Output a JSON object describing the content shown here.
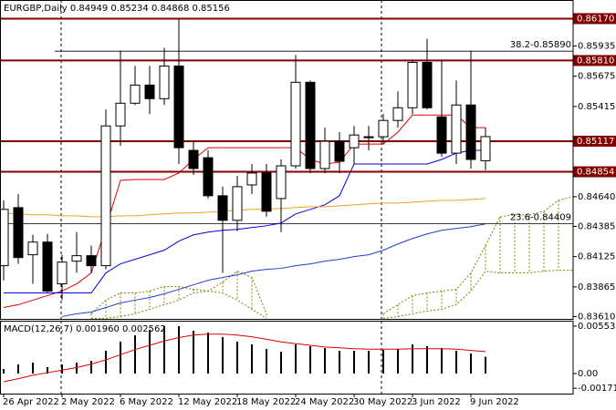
{
  "chart_data": [
    {
      "type": "candlestick",
      "title": "EURGBP,Daily  0.84949 0.85234 0.84868 0.85156",
      "categories": [
        "26 Apr 2022",
        null,
        null,
        null,
        "2 May 2022",
        null,
        null,
        null,
        "6 May 2022",
        null,
        null,
        null,
        "12 May 2022",
        null,
        null,
        null,
        "18 May 2022",
        null,
        null,
        null,
        "24 May 2022",
        null,
        null,
        null,
        "30 May 2022",
        null,
        null,
        null,
        "3 Jun 2022",
        null,
        null,
        null,
        "9 Jun 2022",
        null,
        null,
        null,
        null,
        null,
        null,
        null
      ],
      "open": [
        0.84047,
        0.84546,
        0.84141,
        0.8425,
        0.83891,
        0.84086,
        0.84133,
        0.84047,
        0.85248,
        0.85443,
        0.85599,
        0.85482,
        0.85763,
        0.85038,
        0.84975,
        0.84648,
        0.84437,
        0.84741,
        0.84843,
        0.84624,
        0.84905,
        0.85623,
        0.84882,
        0.85116,
        0.85061,
        0.85155,
        0.85155,
        0.85295,
        0.85404,
        0.85794,
        0.85326,
        0.85014,
        0.85428,
        0.84949,
        null,
        null,
        null,
        null,
        null,
        null
      ],
      "high": [
        0.84609,
        0.84663,
        0.84312,
        0.8432,
        0.84141,
        0.84336,
        0.84219,
        0.85389,
        0.85896,
        0.85763,
        0.85763,
        0.85919,
        0.86169,
        0.85116,
        0.85038,
        0.84726,
        0.84819,
        0.84921,
        0.84921,
        0.8496,
        0.85857,
        0.85638,
        0.85233,
        0.85194,
        0.85248,
        0.85248,
        0.8535,
        0.85545,
        0.85818,
        0.85997,
        0.85818,
        0.85638,
        0.85896,
        0.85234,
        null,
        null,
        null,
        null,
        null,
        null
      ],
      "low": [
        0.83922,
        0.84063,
        0.83891,
        0.83813,
        0.83751,
        0.83985,
        0.83985,
        0.84016,
        0.85077,
        0.85428,
        0.8535,
        0.85428,
        0.84921,
        0.84827,
        0.84624,
        0.83985,
        0.84344,
        0.84663,
        0.84468,
        0.84336,
        0.84882,
        0.84843,
        0.84843,
        0.84843,
        0.84921,
        0.85038,
        0.85092,
        0.85233,
        0.8535,
        0.85389,
        0.84983,
        0.84921,
        0.84882,
        0.84868,
        null,
        null,
        null,
        null,
        null,
        null
      ],
      "close": [
        0.84531,
        0.84117,
        0.8425,
        0.83829,
        0.84078,
        0.84133,
        0.84047,
        0.85248,
        0.85443,
        0.85599,
        0.85482,
        0.85763,
        0.85061,
        0.84882,
        0.84648,
        0.84437,
        0.84726,
        0.84843,
        0.84515,
        0.84905,
        0.85623,
        0.84882,
        0.85116,
        0.84944,
        0.8517,
        0.85147,
        0.85295,
        0.85404,
        0.85794,
        0.85404,
        0.85014,
        0.85428,
        0.8496,
        0.85156,
        null,
        null,
        null,
        null,
        null,
        null
      ],
      "lines": [
        {
          "color": "#e00000",
          "values": [
            0.83688,
            0.83712,
            0.83751,
            0.8379,
            0.83829,
            0.83891,
            0.83985,
            0.84375,
            0.8478,
            0.84788,
            0.84788,
            0.84788,
            0.84843,
            0.8496,
            0.85061,
            0.85061,
            0.85061,
            0.85061,
            0.85061,
            0.85061,
            0.85061,
            0.8496,
            0.84921,
            0.84936,
            0.85092,
            0.85092,
            0.85092,
            0.85194,
            0.85342,
            0.85342,
            0.85342,
            0.85342,
            0.85233,
            0.85233,
            null,
            null,
            null,
            null,
            null,
            null
          ]
        },
        {
          "color": "#0000e0",
          "values": [
            0.83813,
            0.83813,
            0.83813,
            0.83813,
            0.83813,
            0.83813,
            0.83813,
            0.83985,
            0.84063,
            0.84102,
            0.84141,
            0.8418,
            0.84258,
            0.84312,
            0.84336,
            0.84351,
            0.84359,
            0.84375,
            0.8439,
            0.84414,
            0.84492,
            0.84531,
            0.8457,
            0.84648,
            0.84921,
            0.84921,
            0.84921,
            0.84921,
            0.84921,
            0.84921,
            0.8496,
            0.85014,
            0.85038,
            0.85038,
            null,
            null,
            null,
            null,
            null,
            null
          ]
        },
        {
          "color": "#2040d0",
          "values": [
            null,
            null,
            null,
            null,
            0.8361,
            0.83634,
            0.83649,
            0.83688,
            0.83727,
            0.83751,
            0.83774,
            0.83805,
            0.83844,
            0.83883,
            0.83922,
            0.83946,
            0.83969,
            0.84,
            0.84016,
            0.84024,
            0.84047,
            0.84063,
            0.84086,
            0.84102,
            0.84125,
            0.84141,
            0.8418,
            0.84234,
            0.84281,
            0.8432,
            0.84351,
            0.84367,
            0.84383,
            0.84406,
            null,
            null,
            null,
            null,
            null,
            null
          ]
        },
        {
          "color": "#f0a020",
          "values": [
            0.845,
            0.84492,
            0.84484,
            0.84484,
            0.84476,
            0.84476,
            0.84468,
            0.84468,
            0.84476,
            0.84476,
            0.84484,
            0.84492,
            0.845,
            0.845,
            0.84507,
            0.84515,
            0.84523,
            0.84531,
            0.84531,
            0.84539,
            0.84546,
            0.84554,
            0.84554,
            0.84562,
            0.8457,
            0.84578,
            0.84585,
            0.84585,
            0.84593,
            0.84601,
            0.84609,
            0.84609,
            0.84617,
            0.84624,
            null,
            null,
            null,
            null,
            null,
            null
          ]
        }
      ],
      "cloud": {
        "color": "#808000",
        "span_a": [
          null,
          null,
          null,
          null,
          null,
          null,
          0.83634,
          0.83751,
          0.83813,
          0.83813,
          0.83829,
          0.83868,
          0.83868,
          0.83844,
          0.83829,
          0.83907,
          0.84,
          0.83946,
          0.83634,
          null,
          null,
          null,
          null,
          null,
          null,
          null,
          0.83634,
          0.83712,
          0.8379,
          0.83813,
          0.83829,
          0.83844,
          0.83985,
          0.84219,
          0.84468,
          0.84484,
          0.84484,
          0.84515,
          0.84609,
          0.8464
        ],
        "span_b": [
          null,
          null,
          null,
          null,
          null,
          null,
          0.83595,
          0.83595,
          0.8361,
          0.83634,
          0.83673,
          0.83712,
          0.83751,
          0.83813,
          0.83829,
          0.83813,
          0.83751,
          0.83673,
          0.83595,
          null,
          null,
          null,
          null,
          null,
          null,
          null,
          0.83595,
          0.8361,
          0.83634,
          0.83657,
          0.83673,
          0.83712,
          0.83829,
          0.84,
          0.83985,
          0.83985,
          0.83985,
          0.84,
          0.84008,
          0.84008
        ]
      },
      "levels": [
        {
          "value": 0.8617,
          "label": "0.86170"
        },
        {
          "value": 0.8581,
          "label": "0.85810"
        },
        {
          "value": 0.85117,
          "label": "0.85117"
        },
        {
          "value": 0.84854,
          "label": "0.84854"
        }
      ],
      "level_color": "#800000",
      "fib_levels": [
        {
          "value": 0.8589,
          "label": "38.2-0.85890"
        },
        {
          "value": 0.84409,
          "label": "23.6-0.84409"
        }
      ],
      "ylim": [
        0.8359,
        0.8633
      ],
      "yticks": [
        0.85935,
        0.85675,
        0.85415,
        {
          "value": 0.8464,
          "label": "0.84640"
        },
        0.84385,
        0.84125,
        0.83865,
        {
          "value": 0.8361,
          "label": "0.83610"
        }
      ]
    },
    {
      "type": "macd",
      "title": "MACD(12,26,7) 0.001960 0.002562",
      "color": "#000000",
      "values": [
        0.00053,
        0.00106,
        0.00128,
        0.00075,
        0.00106,
        0.00128,
        0.00149,
        0.00266,
        0.00373,
        0.00447,
        0.00511,
        0.00553,
        0.00553,
        0.005,
        0.00479,
        0.00426,
        0.00373,
        0.00341,
        0.00287,
        0.00255,
        0.00341,
        0.00319,
        0.00298,
        0.00266,
        0.00266,
        0.00266,
        0.00277,
        0.00287,
        0.00341,
        0.00319,
        0.00298,
        0.00266,
        0.00234,
        0.00196
      ],
      "signal": {
        "color": "#e00000",
        "values": [
          -0.00096,
          -0.0006,
          -0.0002,
          0.0001,
          0.0004,
          0.0007,
          0.0011,
          0.0016,
          0.0022,
          0.0028,
          0.0033,
          0.0038,
          0.0042,
          0.0045,
          0.0046,
          0.0046,
          0.0045,
          0.0043,
          0.004,
          0.0037,
          0.0035,
          0.0033,
          0.0031,
          0.003,
          0.0029,
          0.00285,
          0.00285,
          0.00285,
          0.0029,
          0.0029,
          0.0029,
          0.00285,
          0.0027,
          0.002562
        ]
      },
      "ylim": [
        -0.00234,
        0.00617
      ],
      "yticks": [
        0.005535,
        {
          "value": 0,
          "label": "0.00"
        },
        -0.001713
      ]
    }
  ]
}
